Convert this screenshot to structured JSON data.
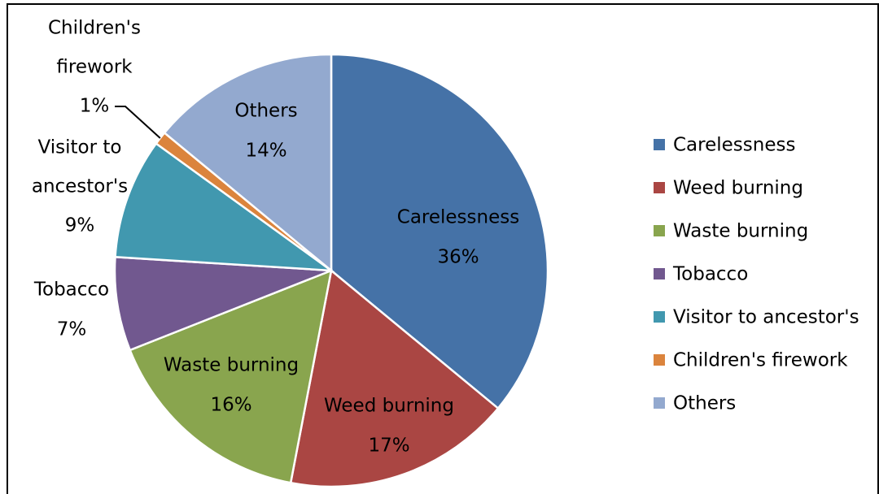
{
  "chart_data": {
    "type": "pie",
    "title": "",
    "slices": [
      {
        "name": "Carelessness",
        "value": 36,
        "label_line1": "Carelessness",
        "label_pct": "36%",
        "color": "#4572A7"
      },
      {
        "name": "Weed burning",
        "value": 17,
        "label_line1": "Weed burning",
        "label_pct": "17%",
        "color": "#AA4643"
      },
      {
        "name": "Waste burning",
        "value": 16,
        "label_line1": "Waste burning",
        "label_pct": "16%",
        "color": "#89A54E"
      },
      {
        "name": "Tobacco",
        "value": 7,
        "label_line1": "Tobacco",
        "label_pct": "7%",
        "color": "#71588F"
      },
      {
        "name": "Visitor to ancestor's",
        "value": 9,
        "label_line1": "Visitor to",
        "label_line2": "ancestor's",
        "label_pct": "9%",
        "color": "#4198AF"
      },
      {
        "name": "Children's firework",
        "value": 1,
        "label_line1": "Children's",
        "label_line2": "firework",
        "label_pct": "1%",
        "color": "#DB843D"
      },
      {
        "name": "Others",
        "value": 14,
        "label_line1": "Others",
        "label_pct": "14%",
        "color": "#93A9CF"
      }
    ],
    "legend": {
      "placement": "right",
      "entries": [
        "Carelessness",
        "Weed burning",
        "Waste burning",
        "Tobacco",
        "Visitor to ancestor's",
        "Children's firework",
        "Others"
      ]
    }
  }
}
